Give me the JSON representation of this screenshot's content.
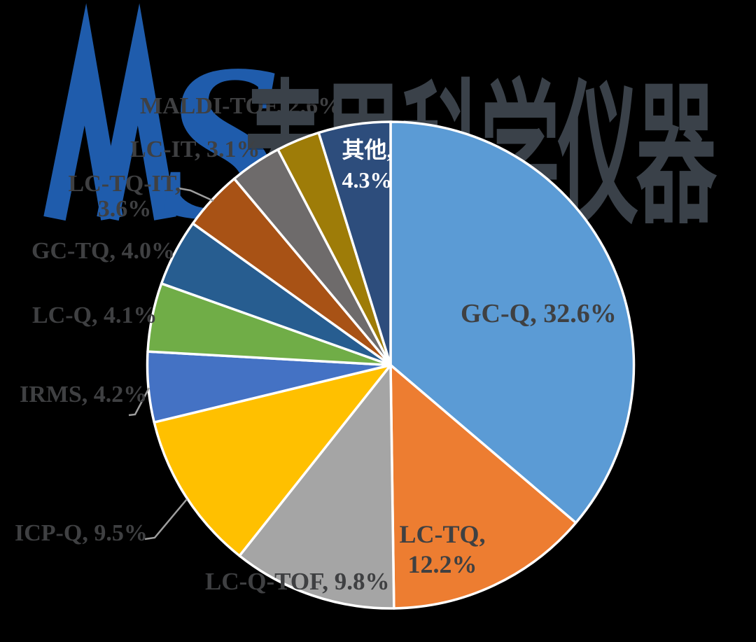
{
  "background_color": "#000000",
  "logo": {
    "glyph_m": "M",
    "glyph_s": "S",
    "color": "#1F5CAC"
  },
  "watermark": {
    "text": "麦思科学仪器",
    "color": "#3A4149"
  },
  "chart_data": {
    "type": "pie",
    "title": "",
    "legend": "none",
    "direction": "clockwise",
    "start_angle_deg": 0,
    "values_unit": "percent",
    "values_total_for_angles": 90.0,
    "slices": [
      {
        "id": "gcq",
        "label": "GC-Q",
        "value": 32.6,
        "color": "#5B9BD5",
        "label_text": "GC-Q, 32.6%",
        "label_placement": "inside"
      },
      {
        "id": "lctq",
        "label": "LC-TQ",
        "value": 12.2,
        "color": "#ED7D31",
        "label_line1": "LC-TQ,",
        "label_line2": "12.2%",
        "label_placement": "inside"
      },
      {
        "id": "lcqtof",
        "label": "LC-Q-TOF",
        "value": 9.8,
        "color": "#A5A5A5",
        "label_text": "LC-Q-TOF, 9.8%",
        "label_placement": "outside"
      },
      {
        "id": "icpq",
        "label": "ICP-Q",
        "value": 9.5,
        "color": "#FFC000",
        "label_text": "ICP-Q, 9.5%",
        "label_placement": "outside"
      },
      {
        "id": "irms",
        "label": "IRMS",
        "value": 4.2,
        "color": "#4472C4",
        "label_text": "IRMS, 4.2%",
        "label_placement": "outside"
      },
      {
        "id": "lcq",
        "label": "LC-Q",
        "value": 4.1,
        "color": "#70AD47",
        "label_text": "LC-Q, 4.1%",
        "label_placement": "outside"
      },
      {
        "id": "gctq",
        "label": "GC-TQ",
        "value": 4.0,
        "color": "#275D90",
        "label_text": "GC-TQ, 4.0%",
        "label_placement": "outside"
      },
      {
        "id": "lctqit",
        "label": "LC-TQ-IT",
        "value": 3.6,
        "color": "#A85215",
        "label_line1": "LC-TQ-IT,",
        "label_line2": "3.6%",
        "label_placement": "outside"
      },
      {
        "id": "lcit",
        "label": "LC-IT",
        "value": 3.1,
        "color": "#6E6B6B",
        "label_text": "LC-IT, 3.1%",
        "label_placement": "outside"
      },
      {
        "id": "malditof",
        "label": "MALDI-TOF",
        "value": 2.6,
        "color": "#9E7C08",
        "label_text": "MALDI-TOF, 2.6%",
        "label_placement": "outside"
      },
      {
        "id": "qita",
        "label": "其他",
        "value": 4.3,
        "color": "#2D4D7C",
        "label_line1": "其他,",
        "label_line2": "4.3%",
        "label_placement": "inside"
      }
    ]
  }
}
